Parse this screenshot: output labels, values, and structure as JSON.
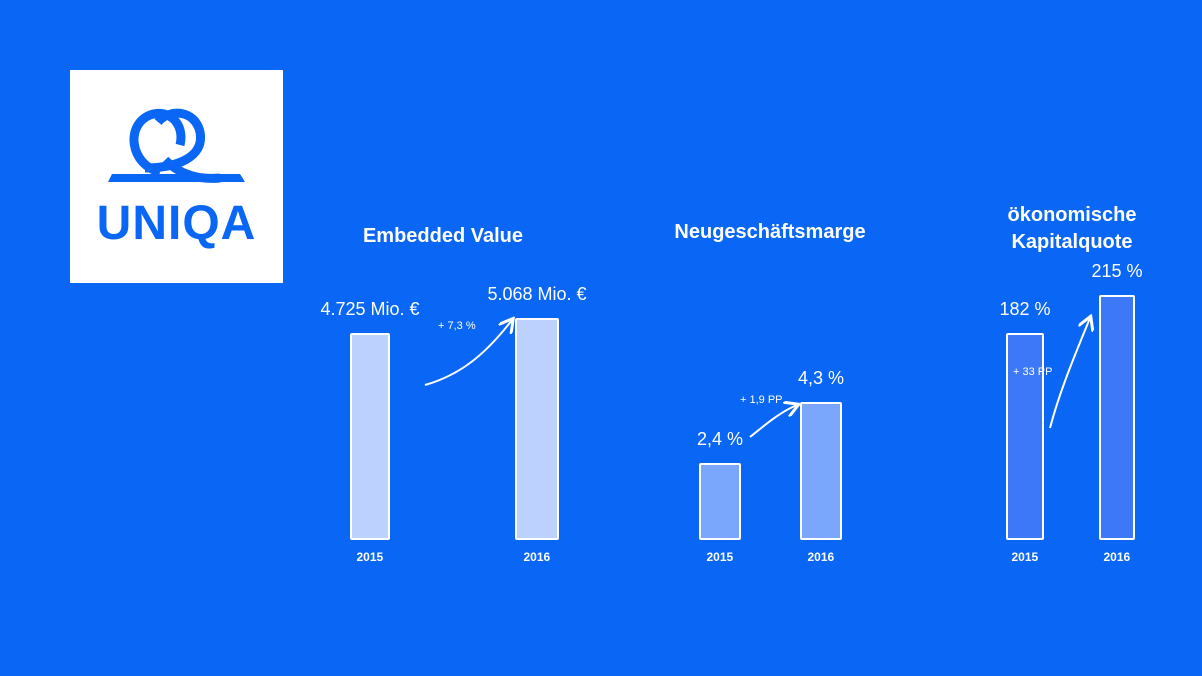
{
  "logo_text": "UNIQA",
  "chart_data": [
    {
      "type": "bar",
      "title": "Embedded Value",
      "categories": [
        "2015",
        "2016"
      ],
      "values": [
        4725,
        5068
      ],
      "value_labels": [
        "4.725 Mio. €",
        "5.068 Mio. €"
      ],
      "annotation": "+ 7,3 %",
      "color": "#bcd1fd"
    },
    {
      "type": "bar",
      "title": "Neugeschäftsmarge",
      "categories": [
        "2015",
        "2016"
      ],
      "values": [
        2.4,
        4.3
      ],
      "value_labels": [
        "2,4 %",
        "4,3 %"
      ],
      "annotation": "+ 1,9 PP",
      "color": "#7aa6fb"
    },
    {
      "type": "bar",
      "title": "ökonomische Kapitalquote",
      "categories": [
        "2015",
        "2016"
      ],
      "values": [
        182,
        215
      ],
      "value_labels": [
        "182 %",
        "215 %"
      ],
      "annotation": "+ 33 PP",
      "color": "#3d78f8"
    }
  ]
}
